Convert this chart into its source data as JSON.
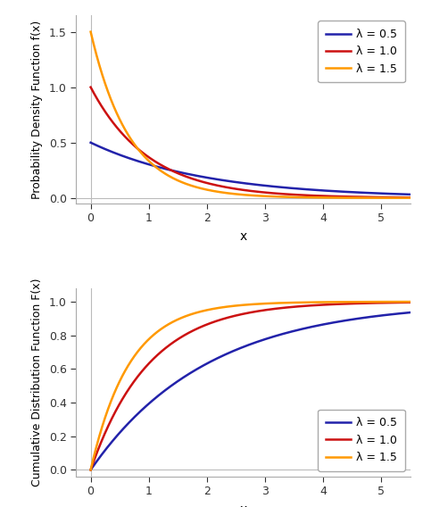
{
  "lambdas": [
    0.5,
    1.0,
    1.5
  ],
  "colors": [
    "#2222aa",
    "#cc1111",
    "#ff9900"
  ],
  "line_width": 1.8,
  "x_min": -0.25,
  "x_max": 5.5,
  "pdf_ylim": [
    -0.05,
    1.65
  ],
  "cdf_ylim": [
    -0.04,
    1.08
  ],
  "pdf_yticks": [
    0.0,
    0.5,
    1.0,
    1.5
  ],
  "cdf_yticks": [
    0.0,
    0.2,
    0.4,
    0.6,
    0.8,
    1.0
  ],
  "xticks": [
    0,
    1,
    2,
    3,
    4,
    5
  ],
  "xlabel": "x",
  "pdf_ylabel": "Probability Density Function f(x)",
  "cdf_ylabel": "Cumulative Distribution Function F(x)",
  "legend_labels": [
    "λ = 0.5",
    "λ = 1.0",
    "λ = 1.5"
  ],
  "spine_color": "#aaaaaa",
  "tick_color": "#333333",
  "font_size": 9,
  "legend_font_size": 9,
  "axis_line_color": "#bbbbbb"
}
